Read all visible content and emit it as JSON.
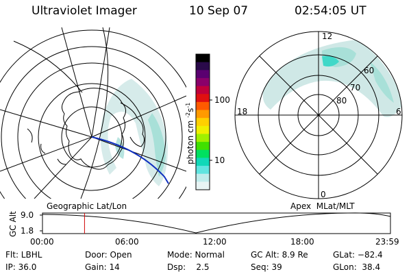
{
  "header": {
    "title": "Ultraviolet Imager",
    "date": "10 Sep 07",
    "time": "02:54:05 UT"
  },
  "colorbar": {
    "label": "photon cm",
    "label_sup": "-2",
    "label_unit": "s",
    "label_sup2": "-1",
    "ticks": [
      "100",
      "10"
    ],
    "colors": [
      "#000000",
      "#2a0a4a",
      "#5a0070",
      "#8a006a",
      "#c0003a",
      "#e01010",
      "#ff5a00",
      "#ff9a00",
      "#ffd000",
      "#f0f000",
      "#a0f000",
      "#40e000",
      "#00e060",
      "#10d8b8",
      "#60e4e0",
      "#c0ecec",
      "#e8f4f4"
    ]
  },
  "geo_map": {
    "label": "Geographic Lat/Lon",
    "aurora_color": "#a8e0d8",
    "orbit_color": "#1030c0"
  },
  "apex_map": {
    "label": "Apex  MLat/MLT",
    "lat_labels": [
      "60",
      "70",
      "80"
    ],
    "mlt_labels": {
      "top": "12",
      "left": "18",
      "right": "6",
      "bottom": "0"
    },
    "aurora_color": "#a8e0d8",
    "aurora_peak_color": "#40d8c8"
  },
  "altitude_plot": {
    "ylabel": "GC Alt",
    "y_ticks": [
      "9.0",
      "1.8"
    ],
    "x_ticks": [
      "00:00",
      "06:00",
      "12:00",
      "18:00",
      "23:59"
    ],
    "marker_color": "#d00000",
    "marker_time_hours": 2.9
  },
  "footer": {
    "filter": "Flt: LBHL",
    "door": "Door: Open",
    "mode": "Mode: Normal",
    "gc_alt": "GC Alt: 8.9 Re",
    "glat": "GLat: −82.4",
    "ip": "IP: 36.0",
    "gain": "Gain: 14",
    "dsp": "Dsp:    2.5",
    "seq": "Seq: 39",
    "glon": "GLon:  38.4"
  }
}
